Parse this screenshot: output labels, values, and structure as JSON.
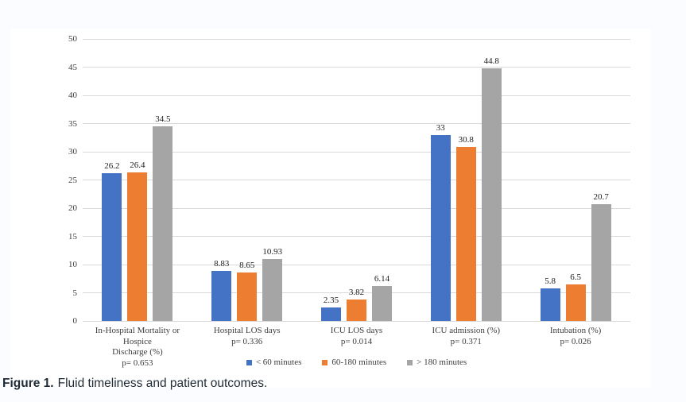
{
  "caption": {
    "label": "Figure 1.",
    "text": "Fluid timeliness and patient outcomes."
  },
  "colors": {
    "series_blue": "#4472C4",
    "series_orange": "#ED7D31",
    "series_gray": "#A5A5A5",
    "gridline": "#D9D9D9",
    "axis_text": "#404040",
    "page_background": "#FAFCFF",
    "panel_background": "#FFFFFF",
    "caption_text": "#1F2A37"
  },
  "chart_data": {
    "type": "bar",
    "title": "",
    "xlabel": "",
    "ylabel": "",
    "ylim": [
      0,
      50
    ],
    "yticks": [
      0,
      5,
      10,
      15,
      20,
      25,
      30,
      35,
      40,
      45,
      50
    ],
    "grid": true,
    "legend_position": "bottom-center",
    "categories": [
      "In-Hospital Mortality or Hospice Discharge (%)",
      "Hospital LOS days",
      "ICU LOS days",
      "ICU admission (%)",
      "Intubation (%)"
    ],
    "category_label_lines": [
      [
        "In-Hospital Mortality or Hospice",
        "Discharge (%)",
        "p= 0.653"
      ],
      [
        "Hospital LOS days",
        "p= 0.336"
      ],
      [
        "ICU LOS days",
        "p= 0.014"
      ],
      [
        "ICU admission (%)",
        "p= 0.371"
      ],
      [
        "Intubation (%)",
        "p= 0.026"
      ]
    ],
    "p_values": [
      "p= 0.653",
      "p= 0.336",
      "p= 0.014",
      "p= 0.371",
      "p= 0.026"
    ],
    "series": [
      {
        "name": "< 60 minutes",
        "color": "#4472C4",
        "values": [
          26.2,
          8.83,
          2.35,
          33,
          5.8
        ]
      },
      {
        "name": "60-180 minutes",
        "color": "#ED7D31",
        "values": [
          26.4,
          8.65,
          3.82,
          30.8,
          6.5
        ]
      },
      {
        "name": "> 180 minutes",
        "color": "#A5A5A5",
        "values": [
          34.5,
          10.93,
          6.14,
          44.8,
          20.7
        ]
      }
    ],
    "data_labels": {
      "< 60 minutes": [
        "26.2",
        "8.83",
        "2.35",
        "33",
        "5.8"
      ],
      "60-180 minutes": [
        "26.4",
        "8.65",
        "3.82",
        "30.8",
        "6.5"
      ],
      "> 180 minutes": [
        "34.5",
        "10.93",
        "6.14",
        "44.8",
        "20.7"
      ]
    }
  }
}
